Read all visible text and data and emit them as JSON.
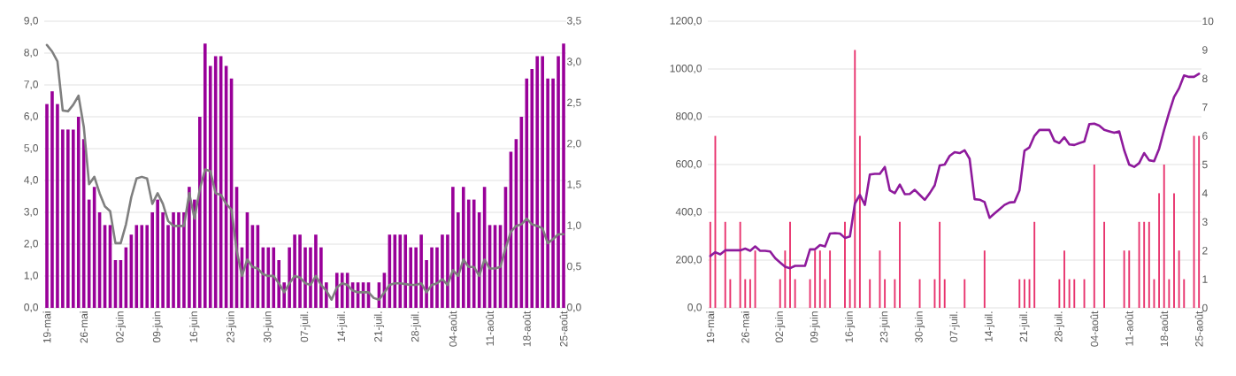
{
  "chart_data": [
    {
      "type": "bar",
      "categories": [
        "19-mai",
        null,
        null,
        null,
        null,
        null,
        null,
        "26-mai",
        null,
        null,
        null,
        null,
        null,
        null,
        "02-juin",
        null,
        null,
        null,
        null,
        null,
        null,
        "09-juin",
        null,
        null,
        null,
        null,
        null,
        null,
        "16-juin",
        null,
        null,
        null,
        null,
        null,
        null,
        "23-juin",
        null,
        null,
        null,
        null,
        null,
        null,
        "30-juin",
        null,
        null,
        null,
        null,
        null,
        null,
        "07-juil.",
        null,
        null,
        null,
        null,
        null,
        null,
        "14-juil.",
        null,
        null,
        null,
        null,
        null,
        null,
        "21-juil.",
        null,
        null,
        null,
        null,
        null,
        null,
        "28-juil.",
        null,
        null,
        null,
        null,
        null,
        null,
        "04-août",
        null,
        null,
        null,
        null,
        null,
        null,
        "11-août",
        null,
        null,
        null,
        null,
        null,
        null,
        "18-août",
        null,
        null,
        null,
        null,
        null,
        null,
        "25-août"
      ],
      "series": [
        {
          "color": "#990099",
          "values": [
            6.4,
            6.8,
            6.4,
            5.6,
            5.6,
            5.6,
            6.0,
            5.3,
            3.4,
            3.8,
            3.0,
            2.6,
            2.6,
            1.5,
            1.5,
            1.9,
            2.3,
            2.6,
            2.6,
            2.6,
            3.0,
            3.4,
            3.0,
            2.6,
            3.0,
            3.0,
            3.0,
            3.8,
            3.4,
            6.0,
            8.3,
            7.6,
            7.9,
            7.9,
            7.6,
            7.2,
            3.8,
            1.9,
            3.0,
            2.6,
            2.6,
            1.9,
            1.9,
            1.9,
            1.5,
            0.8,
            1.9,
            2.3,
            2.3,
            1.9,
            1.9,
            2.3,
            1.9,
            0.8,
            0,
            1.1,
            1.1,
            1.1,
            0.8,
            0.8,
            0.8,
            0.8,
            0,
            0.8,
            1.1,
            2.3,
            2.3,
            2.3,
            2.3,
            1.9,
            1.9,
            2.3,
            1.5,
            1.9,
            1.9,
            2.3,
            2.3,
            3.8,
            3.0,
            3.8,
            3.4,
            3.4,
            3.0,
            3.8,
            2.6,
            2.6,
            2.6,
            3.8,
            4.9,
            5.3,
            6.0,
            7.2,
            7.5,
            7.9,
            7.9,
            7.2,
            7.2,
            7.9,
            8.3
          ]
        },
        {
          "type": "line",
          "axis": "y2",
          "color": "#7f7f7f",
          "values": [
            3.21,
            3.13,
            3.01,
            2.41,
            2.4,
            2.48,
            2.59,
            2.21,
            1.51,
            1.6,
            1.4,
            1.24,
            1.18,
            0.79,
            0.79,
            1.02,
            1.35,
            1.58,
            1.6,
            1.58,
            1.27,
            1.4,
            1.27,
            1.06,
            1.0,
            1.0,
            1.0,
            1.4,
            1.09,
            1.45,
            1.69,
            1.67,
            1.4,
            1.38,
            1.27,
            1.2,
            0.7,
            0.39,
            0.59,
            0.5,
            0.48,
            0.41,
            0.39,
            0.39,
            0.3,
            0.19,
            0.3,
            0.39,
            0.37,
            0.3,
            0.28,
            0.39,
            0.28,
            0.21,
            0.1,
            0.25,
            0.3,
            0.28,
            0.21,
            0.19,
            0.19,
            0.19,
            0.12,
            0.1,
            0.19,
            0.28,
            0.3,
            0.3,
            0.29,
            0.28,
            0.28,
            0.3,
            0.19,
            0.28,
            0.3,
            0.35,
            0.28,
            0.46,
            0.39,
            0.59,
            0.5,
            0.5,
            0.39,
            0.59,
            0.48,
            0.48,
            0.5,
            0.73,
            0.93,
            1.0,
            1.02,
            1.09,
            1.02,
            1.0,
            0.97,
            0.79,
            0.84,
            0.9,
            0.9
          ]
        }
      ],
      "ylim": [
        0,
        9
      ],
      "yticks": [
        {
          "value": 0,
          "label": "0,0"
        },
        {
          "value": 1,
          "label": "1,0"
        },
        {
          "value": 2,
          "label": "2,0"
        },
        {
          "value": 3,
          "label": "3,0"
        },
        {
          "value": 4,
          "label": "4,0"
        },
        {
          "value": 5,
          "label": "5,0"
        },
        {
          "value": 6,
          "label": "6,0"
        },
        {
          "value": 7,
          "label": "7,0"
        },
        {
          "value": 8,
          "label": "8,0"
        },
        {
          "value": 9,
          "label": "9,0"
        }
      ],
      "y2lim": [
        0,
        3.5
      ],
      "y2ticks": [
        {
          "value": 0,
          "label": "0,0"
        },
        {
          "value": 0.5,
          "label": "0,5"
        },
        {
          "value": 1,
          "label": "1,0"
        },
        {
          "value": 1.5,
          "label": "1,5"
        },
        {
          "value": 2,
          "label": "2,0"
        },
        {
          "value": 2.5,
          "label": "2,5"
        },
        {
          "value": 3,
          "label": "3,0"
        },
        {
          "value": 3.5,
          "label": "3,5"
        }
      ],
      "grid": "y"
    },
    {
      "type": "bar",
      "categories": [
        "19-mai",
        null,
        null,
        null,
        null,
        null,
        null,
        "26-mai",
        null,
        null,
        null,
        null,
        null,
        null,
        "02-juin",
        null,
        null,
        null,
        null,
        null,
        null,
        "09-juin",
        null,
        null,
        null,
        null,
        null,
        null,
        "16-juin",
        null,
        null,
        null,
        null,
        null,
        null,
        "23-juin",
        null,
        null,
        null,
        null,
        null,
        null,
        "30-juin",
        null,
        null,
        null,
        null,
        null,
        null,
        "07-juil.",
        null,
        null,
        null,
        null,
        null,
        null,
        "14-juil.",
        null,
        null,
        null,
        null,
        null,
        null,
        "21-juil.",
        null,
        null,
        null,
        null,
        null,
        null,
        "28-juil.",
        null,
        null,
        null,
        null,
        null,
        null,
        "04-août",
        null,
        null,
        null,
        null,
        null,
        null,
        "11-août",
        null,
        null,
        null,
        null,
        null,
        null,
        "18-août",
        null,
        null,
        null,
        null,
        null,
        null,
        "25-août"
      ],
      "series": [
        {
          "axis": "y2",
          "color": "#e8336e",
          "values": [
            3,
            6,
            0,
            3,
            1,
            0,
            3,
            1,
            1,
            2,
            0,
            0,
            0,
            0,
            1,
            2,
            3,
            1,
            0,
            0,
            1,
            2,
            2,
            1,
            2,
            0,
            0,
            3,
            1,
            9,
            6,
            0,
            1,
            0,
            2,
            1,
            0,
            1,
            3,
            0,
            0,
            0,
            1,
            0,
            0,
            1,
            3,
            1,
            0,
            0,
            0,
            1,
            0,
            0,
            0,
            2,
            0,
            0,
            0,
            0,
            0,
            0,
            1,
            1,
            1,
            3,
            0,
            0,
            0,
            0,
            1,
            2,
            1,
            1,
            0,
            1,
            0,
            5,
            0,
            3,
            0,
            0,
            0,
            2,
            2,
            0,
            3,
            3,
            3,
            1,
            4,
            5,
            1,
            4,
            2,
            1,
            0,
            6,
            6
          ]
        },
        {
          "type": "line",
          "color": "#8e1a9c",
          "values": [
            217,
            233,
            224,
            241,
            241,
            241,
            241,
            248,
            239,
            257,
            239,
            239,
            236,
            208,
            190,
            172,
            166,
            176,
            176,
            176,
            245,
            245,
            263,
            257,
            311,
            313,
            311,
            293,
            299,
            437,
            473,
            431,
            558,
            561,
            561,
            590,
            492,
            480,
            516,
            476,
            477,
            494,
            473,
            452,
            480,
            513,
            596,
            600,
            636,
            652,
            648,
            660,
            624,
            455,
            453,
            443,
            377,
            395,
            413,
            431,
            441,
            443,
            492,
            658,
            672,
            720,
            745,
            745,
            745,
            699,
            690,
            714,
            684,
            682,
            690,
            696,
            769,
            771,
            763,
            745,
            739,
            733,
            739,
            660,
            600,
            590,
            606,
            648,
            618,
            614,
            666,
            745,
            817,
            883,
            919,
            973,
            967,
            967,
            980
          ]
        }
      ],
      "ylim": [
        0,
        1200
      ],
      "yticks": [
        {
          "value": 0,
          "label": "0,0"
        },
        {
          "value": 200,
          "label": "200,0"
        },
        {
          "value": 400,
          "label": "400,0"
        },
        {
          "value": 600,
          "label": "600,0"
        },
        {
          "value": 800,
          "label": "800,0"
        },
        {
          "value": 1000,
          "label": "1000,0"
        },
        {
          "value": 1200,
          "label": "1200,0"
        }
      ],
      "y2lim": [
        0,
        10
      ],
      "y2ticks": [
        0,
        1,
        2,
        3,
        4,
        5,
        6,
        7,
        8,
        9,
        10
      ],
      "grid": "y"
    }
  ]
}
